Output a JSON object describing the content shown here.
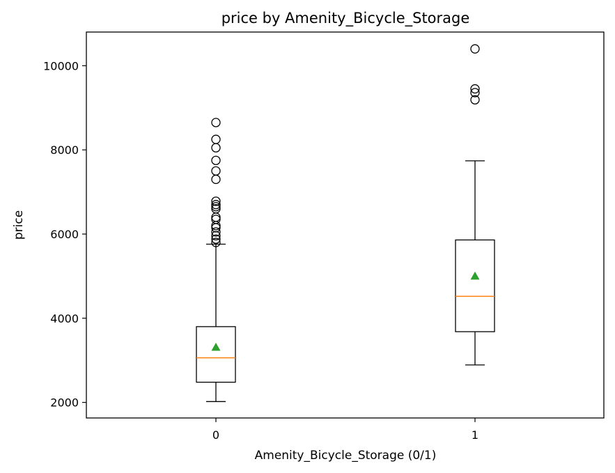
{
  "chart_data": {
    "type": "box",
    "title": "price by Amenity_Bicycle_Storage",
    "xlabel": "Amenity_Bicycle_Storage (0/1)",
    "ylabel": "price",
    "categories": [
      "0",
      "1"
    ],
    "yticks": [
      2000,
      4000,
      6000,
      8000,
      10000
    ],
    "ytick_labels": [
      "2000",
      "4000",
      "6000",
      "8000",
      "10000"
    ],
    "ylim": [
      1630,
      10800
    ],
    "boxes": [
      {
        "category": "0",
        "whisker_low": 2020,
        "q1": 2480,
        "median": 3060,
        "q3": 3800,
        "whisker_high": 5760,
        "mean": 3310,
        "outliers": [
          5800,
          5880,
          5960,
          6050,
          6150,
          6200,
          6350,
          6400,
          6600,
          6650,
          6700,
          6780,
          7300,
          7500,
          7750,
          8050,
          8250,
          8650
        ]
      },
      {
        "category": "1",
        "whisker_low": 2890,
        "q1": 3680,
        "median": 4520,
        "q3": 5860,
        "whisker_high": 7740,
        "mean": 5000,
        "outliers": [
          9190,
          9360,
          9450,
          10400
        ]
      }
    ],
    "colors": {
      "box": "#000000",
      "median": "#ff7f0e",
      "mean": "#2ca02c",
      "flier": "#000000"
    }
  }
}
